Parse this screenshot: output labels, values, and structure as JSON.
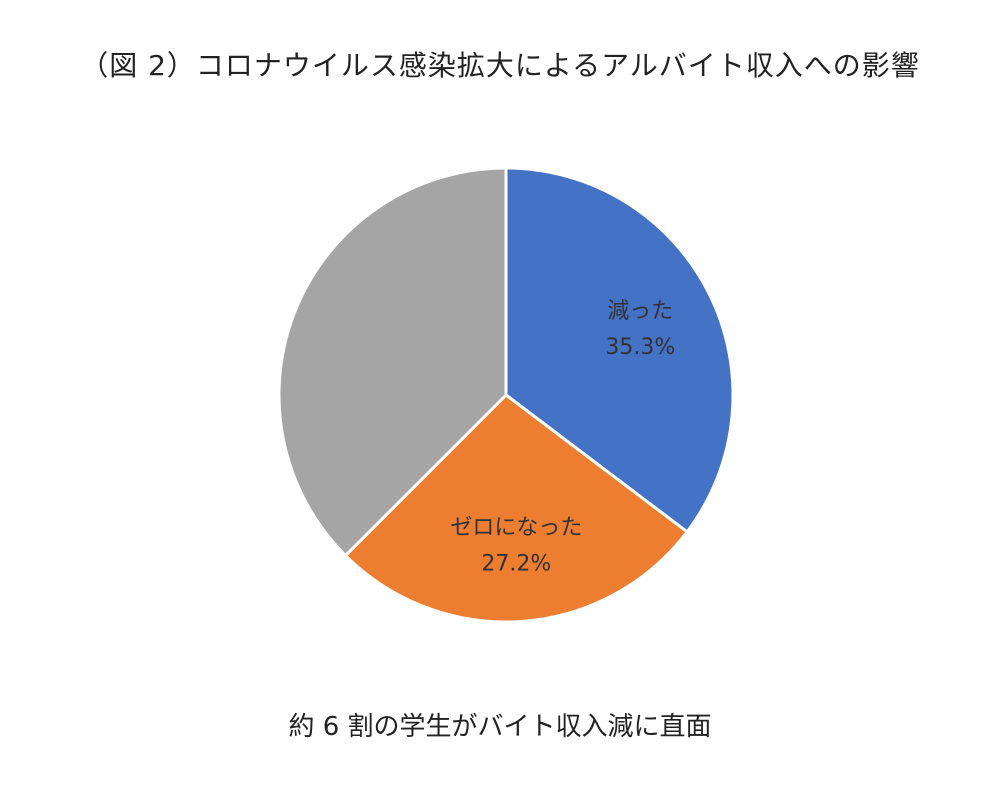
{
  "chart_data": {
    "type": "pie",
    "title": "（図 2）コロナウイルス感染拡大によるアルバイト収入への影響",
    "start_angle_deg": 0,
    "direction": "clockwise",
    "slices": [
      {
        "label": "減った",
        "value": 35.3,
        "value_label": "35.3%",
        "color": "#4472C4"
      },
      {
        "label": "ゼロになった",
        "value": 27.2,
        "value_label": "27.2%",
        "color": "#ED7D31"
      },
      {
        "label": "",
        "value": 37.5,
        "value_label": "",
        "color": "#A5A5A5"
      }
    ],
    "legend": "none"
  },
  "caption": "約 6 割の学生がバイト収入減に直面"
}
